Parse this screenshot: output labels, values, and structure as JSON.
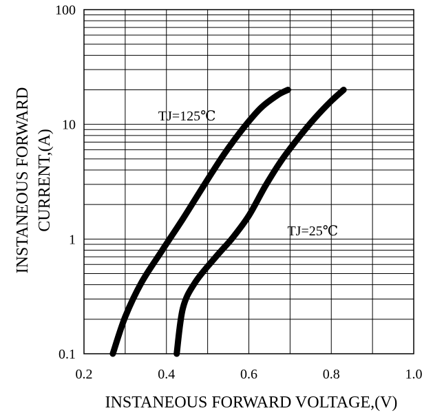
{
  "chart_data": {
    "type": "line",
    "xlabel": "INSTANEOUS FORWARD VOLTAGE,(V)",
    "ylabel_lines": [
      "INSTANEOUS FORWARD",
      "CURRENT,(A)"
    ],
    "xlim": [
      0.2,
      1.0
    ],
    "ylim": [
      0.1,
      100
    ],
    "yscale": "log",
    "grid": true,
    "x_ticks": [
      0.2,
      0.4,
      0.6,
      0.8,
      1.0
    ],
    "x_tick_labels": [
      "0.2",
      "0.4",
      "0.6",
      "0.8",
      "1.0"
    ],
    "y_ticks": [
      0.1,
      1,
      10,
      100
    ],
    "y_tick_labels": [
      "0.1",
      "1",
      "10",
      "100"
    ],
    "series": [
      {
        "name": "TJ=125℃",
        "label_x": 0.45,
        "label_y": 10.8,
        "x": [
          0.27,
          0.3,
          0.34,
          0.39,
          0.44,
          0.49,
          0.54,
          0.59,
          0.63,
          0.67,
          0.695
        ],
        "y": [
          0.1,
          0.21,
          0.42,
          0.8,
          1.5,
          2.9,
          5.5,
          9.6,
          14.0,
          18.0,
          20.0
        ]
      },
      {
        "name": "TJ=25℃",
        "label_x": 0.755,
        "label_y": 1.08,
        "x": [
          0.425,
          0.44,
          0.47,
          0.52,
          0.56,
          0.6,
          0.64,
          0.68,
          0.72,
          0.76,
          0.8,
          0.83
        ],
        "y": [
          0.1,
          0.25,
          0.42,
          0.7,
          1.02,
          1.6,
          2.9,
          4.9,
          7.6,
          11.3,
          16.0,
          20.0
        ]
      }
    ]
  }
}
